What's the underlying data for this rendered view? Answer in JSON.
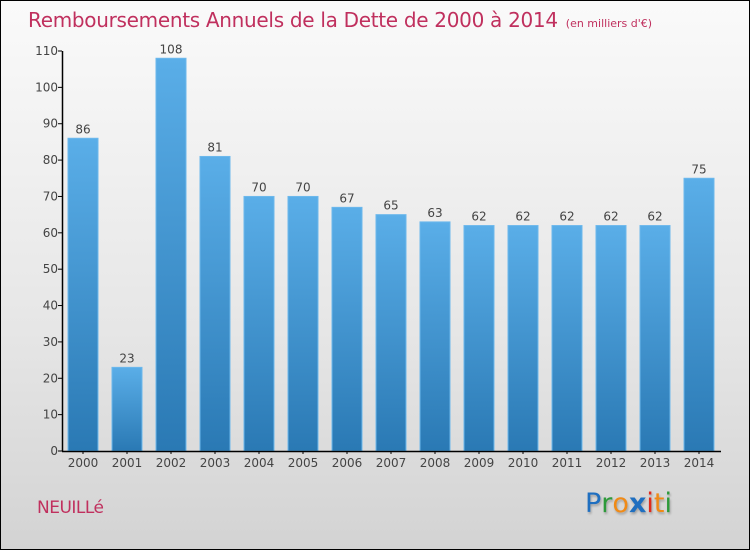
{
  "chart_data": {
    "type": "bar",
    "title": "Remboursements Annuels de la Dette de 2000 à 2014",
    "subtitle": "(en milliers d'€)",
    "categories": [
      "2000",
      "2001",
      "2002",
      "2003",
      "2004",
      "2005",
      "2006",
      "2007",
      "2008",
      "2009",
      "2010",
      "2011",
      "2012",
      "2013",
      "2014"
    ],
    "values": [
      86,
      23,
      108,
      81,
      70,
      70,
      67,
      65,
      63,
      62,
      62,
      62,
      62,
      62,
      75
    ],
    "xlabel": "",
    "ylabel": "",
    "ylim": [
      0,
      110
    ],
    "yticks": [
      0,
      10,
      20,
      30,
      40,
      50,
      60,
      70,
      80,
      90,
      100,
      110
    ],
    "grid": false,
    "data_labels": true,
    "colors": {
      "bar_top": "#5aaee8",
      "bar_bottom": "#2a79b4",
      "title": "#c0305e"
    }
  },
  "footer": {
    "commune": "NEUILLé",
    "logo": {
      "letters": [
        {
          "ch": "P",
          "color": "#1f6fc0"
        },
        {
          "ch": "r",
          "color": "#2d9a3a"
        },
        {
          "ch": "o",
          "color": "#f08a16"
        },
        {
          "ch": "x",
          "color": "#1f6fc0"
        },
        {
          "ch": "i",
          "color": "#e02a1c"
        },
        {
          "ch": "t",
          "color": "#f08a16"
        },
        {
          "ch": "i",
          "color": "#2d9a3a"
        }
      ]
    }
  }
}
